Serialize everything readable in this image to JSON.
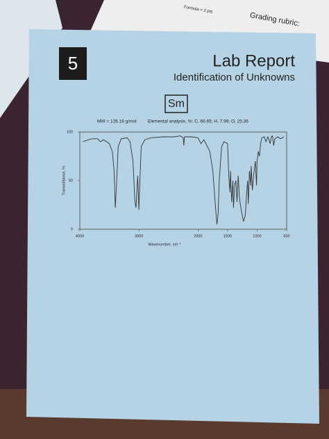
{
  "background_papers": {
    "rubric_title": "Grading rubric:",
    "formula_line": "Formula = 2 pts"
  },
  "header": {
    "number": "5",
    "title": "Lab Report",
    "subtitle": "Identification of Unknowns",
    "code": "Sm"
  },
  "info": {
    "mw": "MW = 126.16 g/mol",
    "elemental": "Elemental analysis, %: C, 66.65; H, 7.99; O, 25.36"
  },
  "chart_data": {
    "type": "line",
    "xlabel": "Wavenumber, cm⁻¹",
    "ylabel": "Transmittance, %",
    "xlim": [
      4000,
      500
    ],
    "ylim": [
      0,
      100
    ],
    "xticks": [
      4000,
      3000,
      2000,
      1500,
      1000,
      500
    ],
    "yticks": [
      0,
      50,
      100
    ],
    "grid": false,
    "color": "#333333",
    "x": [
      3950,
      3800,
      3700,
      3650,
      3600,
      3500,
      3450,
      3420,
      3400,
      3380,
      3350,
      3300,
      3200,
      3150,
      3100,
      3070,
      3050,
      3020,
      3000,
      2980,
      2960,
      2900,
      2800,
      2600,
      2400,
      2300,
      2250,
      2240,
      2230,
      2100,
      2000,
      1950,
      1900,
      1800,
      1750,
      1700,
      1680,
      1660,
      1640,
      1600,
      1560,
      1500,
      1480,
      1460,
      1450,
      1430,
      1410,
      1400,
      1380,
      1360,
      1340,
      1320,
      1300,
      1280,
      1250,
      1230,
      1200,
      1180,
      1160,
      1150,
      1130,
      1110,
      1100,
      1080,
      1060,
      1050,
      1030,
      1010,
      1000,
      980,
      960,
      940,
      920,
      880,
      850,
      820,
      800,
      780,
      760,
      740,
      720,
      700,
      650,
      600,
      550
    ],
    "values": [
      90,
      93,
      93,
      90,
      92,
      88,
      80,
      60,
      22,
      45,
      85,
      93,
      94,
      90,
      70,
      30,
      22,
      55,
      20,
      55,
      85,
      92,
      94,
      95,
      95,
      96,
      94,
      86,
      95,
      95,
      94,
      88,
      92,
      80,
      60,
      20,
      5,
      15,
      50,
      85,
      90,
      88,
      55,
      38,
      60,
      28,
      50,
      22,
      45,
      50,
      28,
      55,
      33,
      24,
      14,
      8,
      14,
      35,
      50,
      26,
      60,
      45,
      65,
      40,
      55,
      60,
      70,
      45,
      70,
      80,
      75,
      88,
      94,
      95,
      90,
      95,
      92,
      88,
      95,
      96,
      86,
      93,
      95,
      93,
      95
    ]
  }
}
